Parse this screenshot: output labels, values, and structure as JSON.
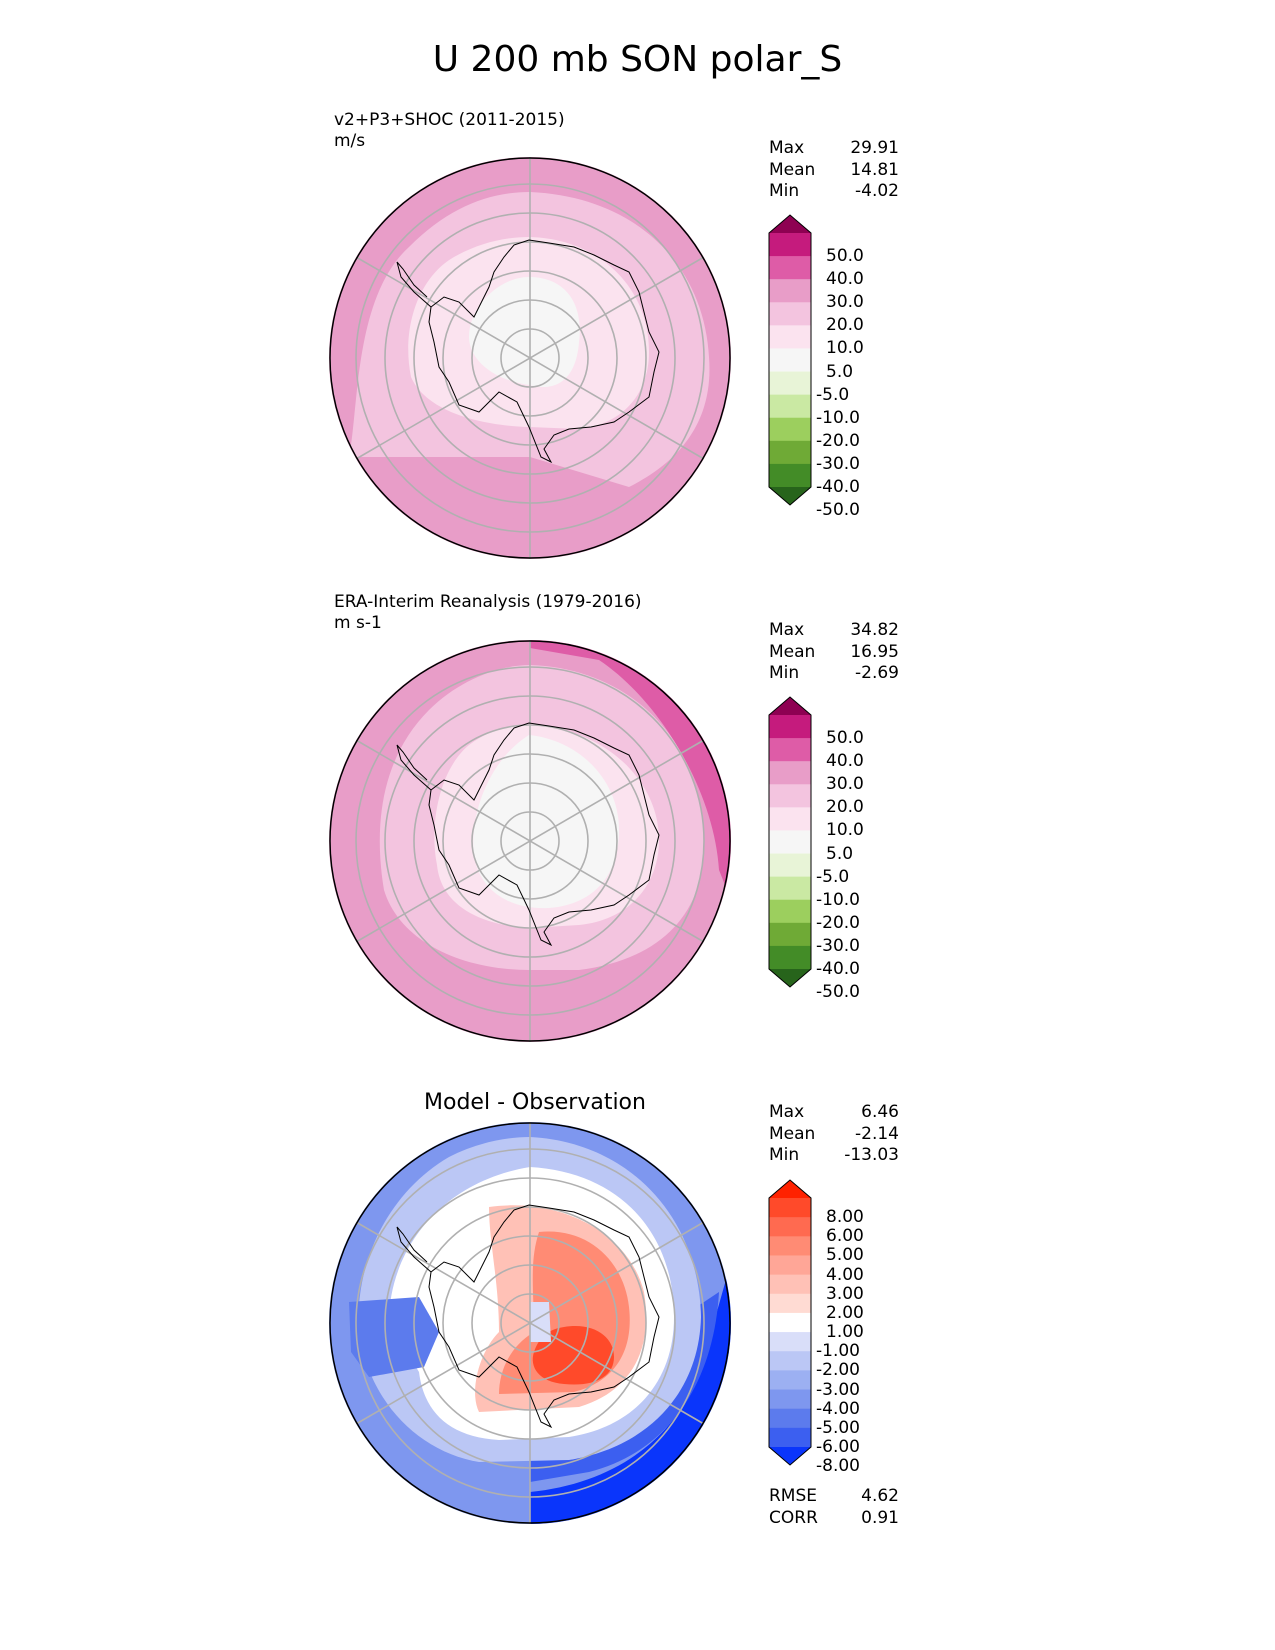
{
  "figure": {
    "title": "U 200 mb SON polar_S"
  },
  "panels": [
    {
      "id": "test",
      "title": "v2+P3+SHOC (2011-2015)",
      "units": "m/s",
      "stats": {
        "max_label": "Max",
        "max": "29.91",
        "mean_label": "Mean",
        "mean": "14.81",
        "min_label": "Min",
        "min": "-4.02"
      }
    },
    {
      "id": "ref",
      "title": "ERA-Interim Reanalysis (1979-2016)",
      "units": "m s-1",
      "stats": {
        "max_label": "Max",
        "max": "34.82",
        "mean_label": "Mean",
        "mean": "16.95",
        "min_label": "Min",
        "min": "-2.69"
      }
    },
    {
      "id": "diff",
      "title": "Model - Observation",
      "stats": {
        "max_label": "Max",
        "max": "6.46",
        "mean_label": "Mean",
        "mean": "-2.14",
        "min_label": "Min",
        "min": "-13.03"
      },
      "metrics": {
        "rmse_label": "RMSE",
        "rmse": "4.62",
        "corr_label": "CORR",
        "corr": "0.91"
      }
    }
  ],
  "chart_data": [
    {
      "type": "heatmap",
      "projection": "south polar stereographic",
      "title": "v2+P3+SHOC (2011-2015)",
      "units": "m/s",
      "colorbar": {
        "levels": [
          "50.0",
          "40.0",
          "30.0",
          "20.0",
          "10.0",
          "5.0",
          "-5.0",
          "-10.0",
          "-20.0",
          "-30.0",
          "-40.0",
          "-50.0"
        ],
        "colors": [
          "#8e0152",
          "#c51b7d",
          "#de5ca7",
          "#e89dc8",
          "#f3c4df",
          "#fbe3ef",
          "#f6f6f6",
          "#e8f4d7",
          "#cae9a3",
          "#9ccf5e",
          "#6faa36",
          "#438c27",
          "#27641b"
        ]
      },
      "field_bands_ms": [
        {
          "range": [
            -5,
            5
          ],
          "region": "pole"
        },
        {
          "range": [
            5,
            10
          ],
          "region": "around Antarctica"
        },
        {
          "range": [
            10,
            20
          ],
          "region": "mid ring"
        },
        {
          "range": [
            20,
            30
          ],
          "region": "outer ring"
        }
      ],
      "stats": {
        "max": 29.91,
        "mean": 14.81,
        "min": -4.02
      }
    },
    {
      "type": "heatmap",
      "projection": "south polar stereographic",
      "title": "ERA-Interim Reanalysis (1979-2016)",
      "units": "m s-1",
      "colorbar": {
        "levels": [
          "50.0",
          "40.0",
          "30.0",
          "20.0",
          "10.0",
          "5.0",
          "-5.0",
          "-10.0",
          "-20.0",
          "-30.0",
          "-40.0",
          "-50.0"
        ],
        "colors": [
          "#8e0152",
          "#c51b7d",
          "#de5ca7",
          "#e89dc8",
          "#f3c4df",
          "#fbe3ef",
          "#f6f6f6",
          "#e8f4d7",
          "#cae9a3",
          "#9ccf5e",
          "#6faa36",
          "#438c27",
          "#27641b"
        ]
      },
      "field_bands_ms": [
        {
          "range": [
            -5,
            5
          ],
          "region": "pole"
        },
        {
          "range": [
            5,
            10
          ],
          "region": "around Antarctica"
        },
        {
          "range": [
            10,
            20
          ],
          "region": "mid ring"
        },
        {
          "range": [
            20,
            30
          ],
          "region": "outer ring"
        },
        {
          "range": [
            30,
            40
          ],
          "region": "outer edge, north-east"
        }
      ],
      "stats": {
        "max": 34.82,
        "mean": 16.95,
        "min": -2.69
      }
    },
    {
      "type": "heatmap",
      "projection": "south polar stereographic",
      "title": "Model - Observation",
      "colorbar": {
        "levels": [
          "8.00",
          "6.00",
          "5.00",
          "4.00",
          "3.00",
          "2.00",
          "1.00",
          "-1.00",
          "-2.00",
          "-3.00",
          "-4.00",
          "-5.00",
          "-6.00",
          "-8.00"
        ],
        "colors": [
          "#ff2200",
          "#ff4a2a",
          "#ff6a50",
          "#ff8b74",
          "#ffa697",
          "#ffc1b6",
          "#ffdbd3",
          "#ffffff",
          "#d9def9",
          "#bbc7f5",
          "#9cb0f2",
          "#7e97ef",
          "#5c7bed",
          "#3c5ff0",
          "#0a35fb"
        ]
      },
      "field_bands": [
        {
          "range": [
            -1,
            1
          ],
          "region": "pole and inner ring"
        },
        {
          "range": [
            1,
            6
          ],
          "region": "over East Antarctica"
        },
        {
          "range": [
            -3,
            -1
          ],
          "region": "west side"
        },
        {
          "range": [
            -8,
            -4
          ],
          "region": "outer ring, south-east"
        }
      ],
      "stats": {
        "max": 6.46,
        "mean": -2.14,
        "min": -13.03,
        "rmse": 4.62,
        "corr": 0.91
      }
    }
  ]
}
